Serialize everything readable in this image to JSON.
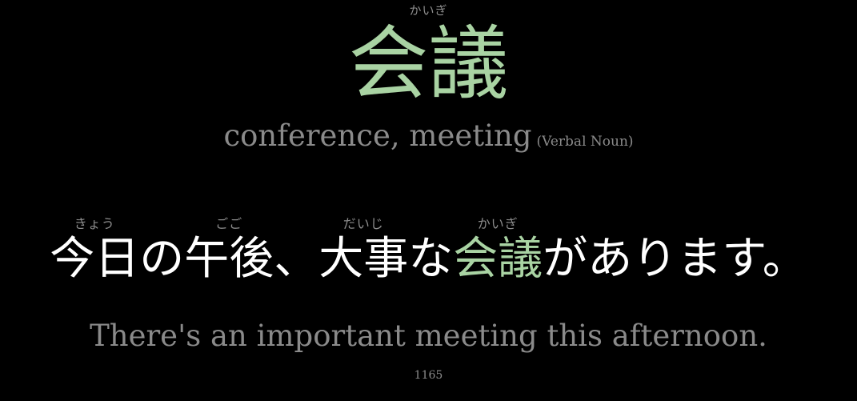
{
  "headword": {
    "reading": "かいぎ",
    "word": "会議",
    "meaning": "conference, meeting",
    "part_of_speech": "(Verbal Noun)"
  },
  "sentence": {
    "segments": [
      {
        "text": "今日",
        "reading": "きょう"
      },
      {
        "text": "の",
        "reading": ""
      },
      {
        "text": "午後",
        "reading": "ごご"
      },
      {
        "text": "、",
        "reading": ""
      },
      {
        "text": "大事",
        "reading": "だいじ"
      },
      {
        "text": "な",
        "reading": ""
      },
      {
        "text": "会議",
        "reading": "かいぎ",
        "highlight": true
      },
      {
        "text": "があります。",
        "reading": ""
      }
    ],
    "translation": "There's an important meeting this afternoon."
  },
  "card_number": "1165",
  "colors": {
    "background": "#000000",
    "highlight": "#a9d3a3",
    "muted": "#8a8a8a",
    "text": "#ffffff"
  }
}
